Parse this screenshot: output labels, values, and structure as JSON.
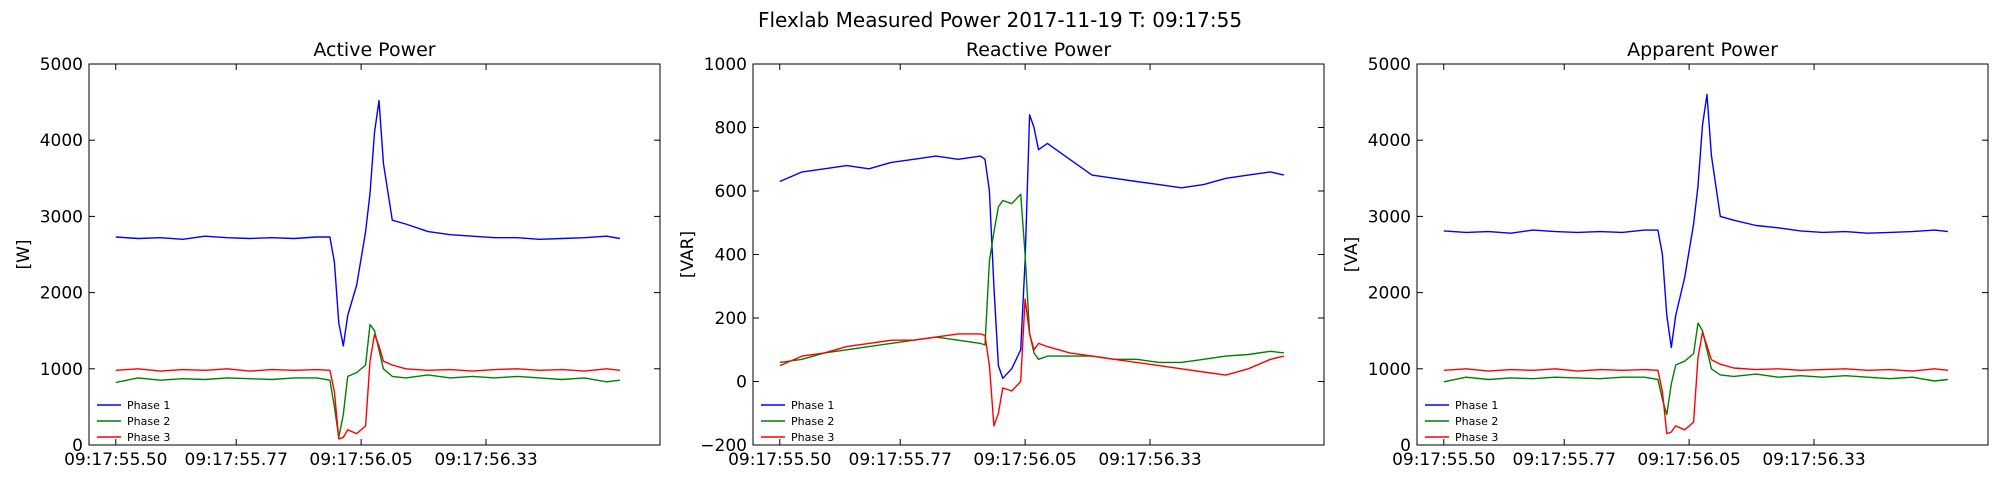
{
  "figure": {
    "title": "Flexlab Measured Power 2017-11-19 T: 09:17:55"
  },
  "colors": {
    "Phase 1": "#0000ff",
    "Phase 2": "#008000",
    "Phase 3": "#ff0000"
  },
  "chart_data": [
    {
      "type": "line",
      "title": "Active Power",
      "xlabel": "",
      "ylabel": "[W]",
      "xlim": [
        55.44,
        56.72
      ],
      "ylim": [
        0,
        5000
      ],
      "yticks": [
        0,
        1000,
        2000,
        3000,
        4000,
        5000
      ],
      "xticks": [
        {
          "value": 55.5,
          "label": "09:17:55.50"
        },
        {
          "value": 55.77,
          "label": "09:17:55.77"
        },
        {
          "value": 56.05,
          "label": "09:17:56.05"
        },
        {
          "value": 56.33,
          "label": "09:17:56.33"
        }
      ],
      "grid": false,
      "legend": "bottom-left",
      "series": [
        {
          "name": "Phase 1",
          "x": [
            55.5,
            55.55,
            55.6,
            55.65,
            55.7,
            55.75,
            55.8,
            55.85,
            55.9,
            55.95,
            55.98,
            55.99,
            56.0,
            56.01,
            56.02,
            56.04,
            56.06,
            56.07,
            56.08,
            56.09,
            56.1,
            56.12,
            56.15,
            56.2,
            56.25,
            56.3,
            56.35,
            56.4,
            56.45,
            56.5,
            56.55,
            56.6,
            56.63
          ],
          "y": [
            2730,
            2710,
            2720,
            2700,
            2740,
            2720,
            2710,
            2720,
            2710,
            2730,
            2730,
            2400,
            1600,
            1300,
            1700,
            2100,
            2800,
            3300,
            4100,
            4520,
            3700,
            2950,
            2900,
            2800,
            2760,
            2740,
            2720,
            2720,
            2700,
            2710,
            2720,
            2740,
            2710
          ]
        },
        {
          "name": "Phase 2",
          "x": [
            55.5,
            55.55,
            55.6,
            55.65,
            55.7,
            55.75,
            55.8,
            55.85,
            55.9,
            55.95,
            55.98,
            55.99,
            56.0,
            56.01,
            56.02,
            56.04,
            56.06,
            56.07,
            56.08,
            56.1,
            56.12,
            56.15,
            56.2,
            56.25,
            56.3,
            56.35,
            56.4,
            56.45,
            56.5,
            56.55,
            56.6,
            56.63
          ],
          "y": [
            820,
            880,
            850,
            870,
            860,
            880,
            870,
            860,
            880,
            880,
            850,
            500,
            100,
            400,
            900,
            950,
            1050,
            1580,
            1500,
            1000,
            900,
            880,
            920,
            880,
            900,
            880,
            900,
            880,
            860,
            880,
            830,
            850
          ]
        },
        {
          "name": "Phase 3",
          "x": [
            55.5,
            55.55,
            55.6,
            55.65,
            55.7,
            55.75,
            55.8,
            55.85,
            55.9,
            55.95,
            55.98,
            55.99,
            56.0,
            56.01,
            56.02,
            56.04,
            56.06,
            56.07,
            56.08,
            56.09,
            56.1,
            56.12,
            56.15,
            56.2,
            56.25,
            56.3,
            56.35,
            56.4,
            56.45,
            56.5,
            56.55,
            56.6,
            56.63
          ],
          "y": [
            980,
            1000,
            970,
            990,
            980,
            1000,
            970,
            990,
            980,
            990,
            980,
            700,
            80,
            100,
            200,
            150,
            250,
            1100,
            1450,
            1300,
            1100,
            1050,
            1000,
            980,
            990,
            970,
            990,
            1000,
            980,
            990,
            970,
            1000,
            980
          ]
        }
      ]
    },
    {
      "type": "line",
      "title": "Reactive Power",
      "xlabel": "",
      "ylabel": "[VAR]",
      "xlim": [
        55.44,
        56.72
      ],
      "ylim": [
        -200,
        1000
      ],
      "yticks": [
        -200,
        0,
        200,
        400,
        600,
        800,
        1000
      ],
      "xticks": [
        {
          "value": 55.5,
          "label": "09:17:55.50"
        },
        {
          "value": 55.77,
          "label": "09:17:55.77"
        },
        {
          "value": 56.05,
          "label": "09:17:56.05"
        },
        {
          "value": 56.33,
          "label": "09:17:56.33"
        }
      ],
      "grid": false,
      "legend": "bottom-left",
      "series": [
        {
          "name": "Phase 1",
          "x": [
            55.5,
            55.55,
            55.6,
            55.65,
            55.7,
            55.75,
            55.8,
            55.85,
            55.9,
            55.95,
            55.96,
            55.97,
            55.98,
            55.99,
            56.0,
            56.02,
            56.04,
            56.05,
            56.06,
            56.07,
            56.08,
            56.1,
            56.15,
            56.2,
            56.25,
            56.3,
            56.35,
            56.4,
            56.45,
            56.5,
            56.55,
            56.6,
            56.63
          ],
          "y": [
            630,
            660,
            670,
            680,
            670,
            690,
            700,
            710,
            700,
            710,
            700,
            600,
            300,
            50,
            10,
            40,
            100,
            380,
            840,
            800,
            730,
            750,
            700,
            650,
            640,
            630,
            620,
            610,
            620,
            640,
            650,
            660,
            650
          ]
        },
        {
          "name": "Phase 2",
          "x": [
            55.5,
            55.55,
            55.6,
            55.65,
            55.7,
            55.75,
            55.8,
            55.85,
            55.9,
            55.95,
            55.96,
            55.97,
            55.98,
            55.99,
            56.0,
            56.02,
            56.04,
            56.05,
            56.06,
            56.07,
            56.08,
            56.1,
            56.15,
            56.2,
            56.25,
            56.3,
            56.35,
            56.4,
            56.45,
            56.5,
            56.55,
            56.6,
            56.63
          ],
          "y": [
            60,
            70,
            90,
            100,
            110,
            120,
            130,
            140,
            130,
            120,
            115,
            380,
            470,
            550,
            570,
            560,
            590,
            400,
            150,
            90,
            70,
            80,
            80,
            80,
            70,
            70,
            60,
            60,
            70,
            80,
            85,
            95,
            90
          ]
        },
        {
          "name": "Phase 3",
          "x": [
            55.5,
            55.55,
            55.6,
            55.65,
            55.7,
            55.75,
            55.8,
            55.85,
            55.9,
            55.95,
            55.96,
            55.97,
            55.98,
            55.99,
            56.0,
            56.02,
            56.04,
            56.05,
            56.06,
            56.07,
            56.08,
            56.1,
            56.15,
            56.2,
            56.25,
            56.3,
            56.35,
            56.4,
            56.45,
            56.5,
            56.55,
            56.6,
            56.63
          ],
          "y": [
            50,
            80,
            90,
            110,
            120,
            130,
            130,
            140,
            150,
            150,
            145,
            50,
            -140,
            -100,
            -20,
            -30,
            0,
            260,
            150,
            100,
            120,
            110,
            90,
            80,
            70,
            60,
            50,
            40,
            30,
            20,
            40,
            70,
            80
          ]
        }
      ]
    },
    {
      "type": "line",
      "title": "Apparent Power",
      "xlabel": "",
      "ylabel": "[VA]",
      "xlim": [
        55.44,
        56.72
      ],
      "ylim": [
        0,
        5000
      ],
      "yticks": [
        0,
        1000,
        2000,
        3000,
        4000,
        5000
      ],
      "xticks": [
        {
          "value": 55.5,
          "label": "09:17:55.50"
        },
        {
          "value": 55.77,
          "label": "09:17:55.77"
        },
        {
          "value": 56.05,
          "label": "09:17:56.05"
        },
        {
          "value": 56.33,
          "label": "09:17:56.33"
        }
      ],
      "grid": false,
      "legend": "bottom-left",
      "series": [
        {
          "name": "Phase 1",
          "x": [
            55.5,
            55.55,
            55.6,
            55.65,
            55.7,
            55.75,
            55.8,
            55.85,
            55.9,
            55.95,
            55.98,
            55.99,
            56.0,
            56.01,
            56.02,
            56.04,
            56.06,
            56.07,
            56.08,
            56.09,
            56.1,
            56.12,
            56.15,
            56.2,
            56.25,
            56.3,
            56.35,
            56.4,
            56.45,
            56.5,
            56.55,
            56.6,
            56.63
          ],
          "y": [
            2810,
            2790,
            2800,
            2780,
            2820,
            2800,
            2790,
            2800,
            2790,
            2820,
            2820,
            2500,
            1700,
            1280,
            1700,
            2200,
            2900,
            3400,
            4200,
            4600,
            3800,
            3000,
            2950,
            2880,
            2850,
            2810,
            2790,
            2800,
            2780,
            2790,
            2800,
            2820,
            2800
          ]
        },
        {
          "name": "Phase 2",
          "x": [
            55.5,
            55.55,
            55.6,
            55.65,
            55.7,
            55.75,
            55.8,
            55.85,
            55.9,
            55.95,
            55.98,
            55.99,
            56.0,
            56.01,
            56.02,
            56.04,
            56.06,
            56.07,
            56.08,
            56.1,
            56.12,
            56.15,
            56.2,
            56.25,
            56.3,
            56.35,
            56.4,
            56.45,
            56.5,
            56.55,
            56.6,
            56.63
          ],
          "y": [
            830,
            890,
            860,
            880,
            870,
            890,
            880,
            870,
            890,
            890,
            860,
            600,
            400,
            800,
            1050,
            1100,
            1200,
            1600,
            1500,
            1000,
            920,
            900,
            930,
            890,
            910,
            890,
            910,
            890,
            870,
            890,
            840,
            860
          ]
        },
        {
          "name": "Phase 3",
          "x": [
            55.5,
            55.55,
            55.6,
            55.65,
            55.7,
            55.75,
            55.8,
            55.85,
            55.9,
            55.95,
            55.98,
            55.99,
            56.0,
            56.01,
            56.02,
            56.04,
            56.06,
            56.07,
            56.08,
            56.09,
            56.1,
            56.12,
            56.15,
            56.2,
            56.25,
            56.3,
            56.35,
            56.4,
            56.45,
            56.5,
            56.55,
            56.6,
            56.63
          ],
          "y": [
            980,
            1000,
            970,
            990,
            980,
            1000,
            970,
            990,
            980,
            990,
            980,
            700,
            150,
            170,
            250,
            200,
            300,
            1150,
            1480,
            1300,
            1120,
            1060,
            1010,
            990,
            1000,
            980,
            990,
            1000,
            980,
            990,
            970,
            1000,
            980
          ]
        }
      ]
    }
  ]
}
